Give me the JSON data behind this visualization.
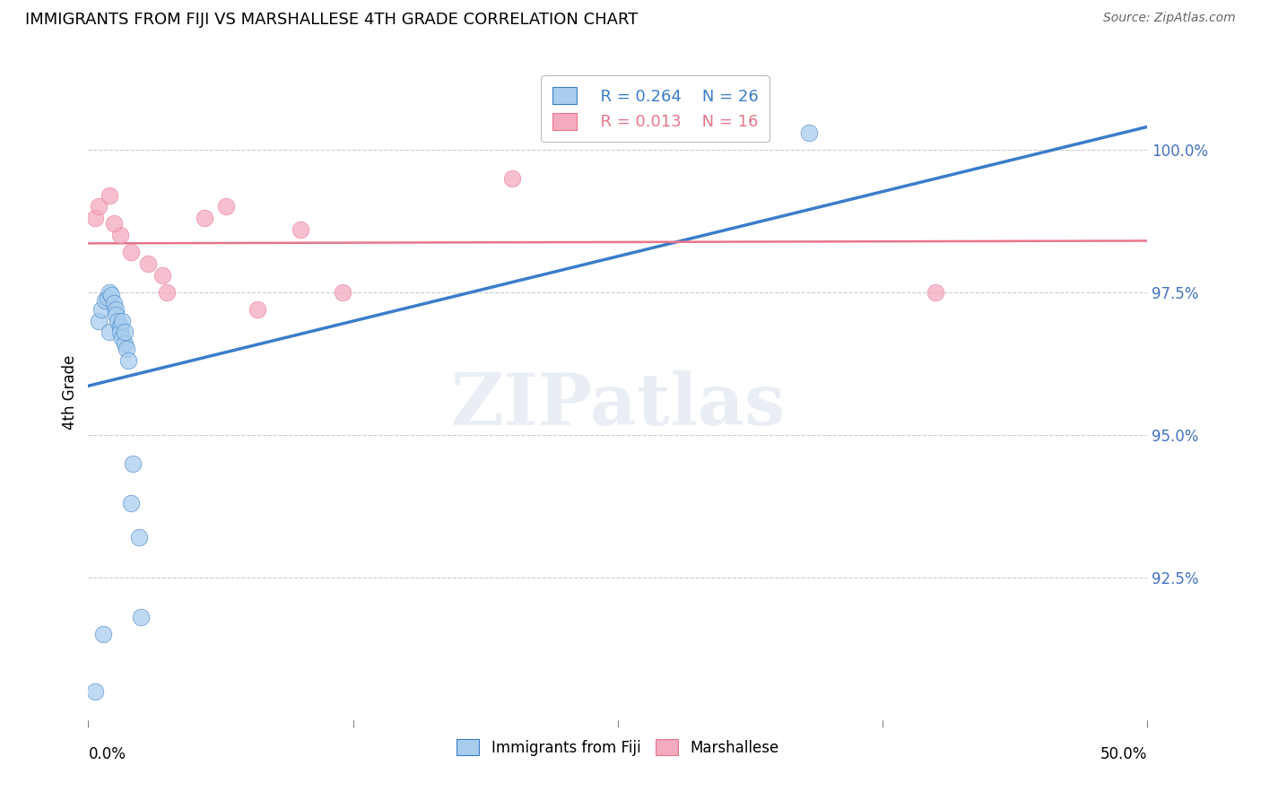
{
  "title": "IMMIGRANTS FROM FIJI VS MARSHALLESE 4TH GRADE CORRELATION CHART",
  "source": "Source: ZipAtlas.com",
  "ylabel": "4th Grade",
  "xlim": [
    0.0,
    50.0
  ],
  "ylim": [
    90.0,
    101.5
  ],
  "fiji_R": 0.264,
  "fiji_N": 26,
  "marsh_R": 0.013,
  "marsh_N": 16,
  "fiji_color": "#A8CDED",
  "marsh_color": "#F4AABF",
  "fiji_line_color": "#3A7DC9",
  "marsh_line_color": "#E8758A",
  "yticks": [
    92.5,
    95.0,
    97.5,
    100.0
  ],
  "xtick_positions": [
    0.0,
    12.5,
    25.0,
    37.5,
    50.0
  ],
  "fiji_x": [
    0.3,
    0.5,
    0.6,
    0.7,
    0.8,
    0.9,
    1.0,
    1.0,
    1.1,
    1.2,
    1.3,
    1.3,
    1.4,
    1.5,
    1.5,
    1.6,
    1.6,
    1.7,
    1.7,
    1.8,
    1.9,
    2.0,
    2.1,
    2.4,
    2.5,
    34.0
  ],
  "fiji_y": [
    90.5,
    97.0,
    97.2,
    91.5,
    97.35,
    97.4,
    97.5,
    96.8,
    97.45,
    97.3,
    97.2,
    97.1,
    97.0,
    96.9,
    96.8,
    97.0,
    96.7,
    96.6,
    96.8,
    96.5,
    96.3,
    93.8,
    94.5,
    93.2,
    91.8,
    100.3
  ],
  "marsh_x": [
    0.3,
    0.5,
    1.0,
    1.5,
    2.0,
    2.8,
    3.5,
    3.7,
    5.5,
    6.5,
    8.0,
    10.0,
    12.0,
    20.0,
    40.0,
    1.2
  ],
  "marsh_y": [
    98.8,
    99.0,
    99.2,
    98.5,
    98.2,
    98.0,
    97.8,
    97.5,
    98.8,
    99.0,
    97.2,
    98.6,
    97.5,
    99.5,
    97.5,
    98.7
  ],
  "watermark_text": "ZIPatlas",
  "background_color": "#ffffff",
  "grid_color": "#cccccc",
  "axis_label_color": "#4472C4",
  "title_fontsize": 13,
  "source_fontsize": 10,
  "tick_label_fontsize": 12,
  "scatter_size": 180,
  "scatter_alpha": 0.75
}
